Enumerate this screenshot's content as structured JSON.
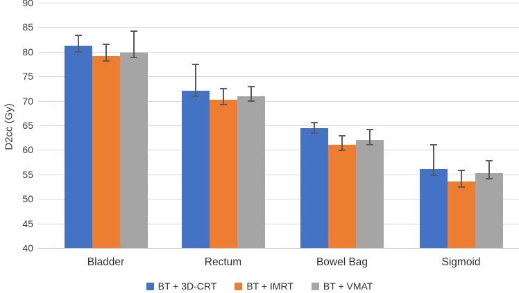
{
  "chart_data": {
    "type": "bar",
    "title": "",
    "xlabel": "",
    "ylabel": "D2cc (Gy)",
    "ylim": [
      40,
      90
    ],
    "yticks": [
      40,
      45,
      50,
      55,
      60,
      65,
      70,
      75,
      80,
      85,
      90
    ],
    "grid": true,
    "legend_position": "bottom",
    "categories": [
      "Bladder",
      "Rectum",
      "Bowel Bag",
      "Sigmoid"
    ],
    "series": [
      {
        "name": "BT + 3D-CRT",
        "color": "#4472C4",
        "values": [
          81.2,
          72.1,
          64.4,
          56.1
        ],
        "error_high": [
          83.4,
          77.4,
          65.6,
          61.1
        ],
        "error_low": [
          80.0,
          71.0,
          63.4,
          54.9
        ]
      },
      {
        "name": "BT + IMRT",
        "color": "#ED7D31",
        "values": [
          79.1,
          70.2,
          61.0,
          53.5
        ],
        "error_high": [
          81.5,
          72.5,
          62.9,
          55.8
        ],
        "error_low": [
          78.1,
          69.3,
          59.9,
          52.4
        ]
      },
      {
        "name": "BT + VMAT",
        "color": "#A5A5A5",
        "values": [
          79.9,
          70.9,
          62.0,
          55.2
        ],
        "error_high": [
          84.2,
          72.9,
          64.2,
          57.8
        ],
        "error_low": [
          78.8,
          69.9,
          61.0,
          54.1
        ]
      }
    ]
  },
  "colors": {
    "gridline": "#D9D9D9",
    "axis_line": "#C8C8C8",
    "error_bar": "#595959",
    "text": "#3A3A3A",
    "background": "#FFFFFF"
  }
}
